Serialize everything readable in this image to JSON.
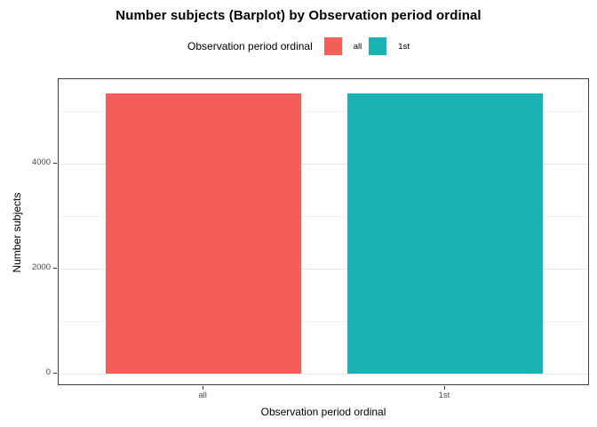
{
  "title": "Number subjects (Barplot) by Observation period ordinal",
  "legend": {
    "title": "Observation period ordinal",
    "items": [
      {
        "label": "all",
        "color": "#F35E59"
      },
      {
        "label": "1st",
        "color": "#1AB2B5"
      }
    ]
  },
  "chart_data": {
    "type": "bar",
    "title": "Number subjects (Barplot) by Observation period ordinal",
    "xlabel": "Observation period ordinal",
    "ylabel": "Number subjects",
    "categories": [
      "all",
      "1st"
    ],
    "values": [
      5350,
      5350
    ],
    "bar_colors": [
      "#F35E59",
      "#1AB2B5"
    ],
    "ylim": [
      0,
      5620
    ],
    "yticks_major": [
      0,
      2000,
      4000
    ],
    "yticks_minor": [
      1000,
      3000,
      5000
    ],
    "grid": true,
    "legend_position": "top",
    "legend_title": "Observation period ordinal",
    "legend_labels": [
      "all",
      "1st"
    ]
  }
}
